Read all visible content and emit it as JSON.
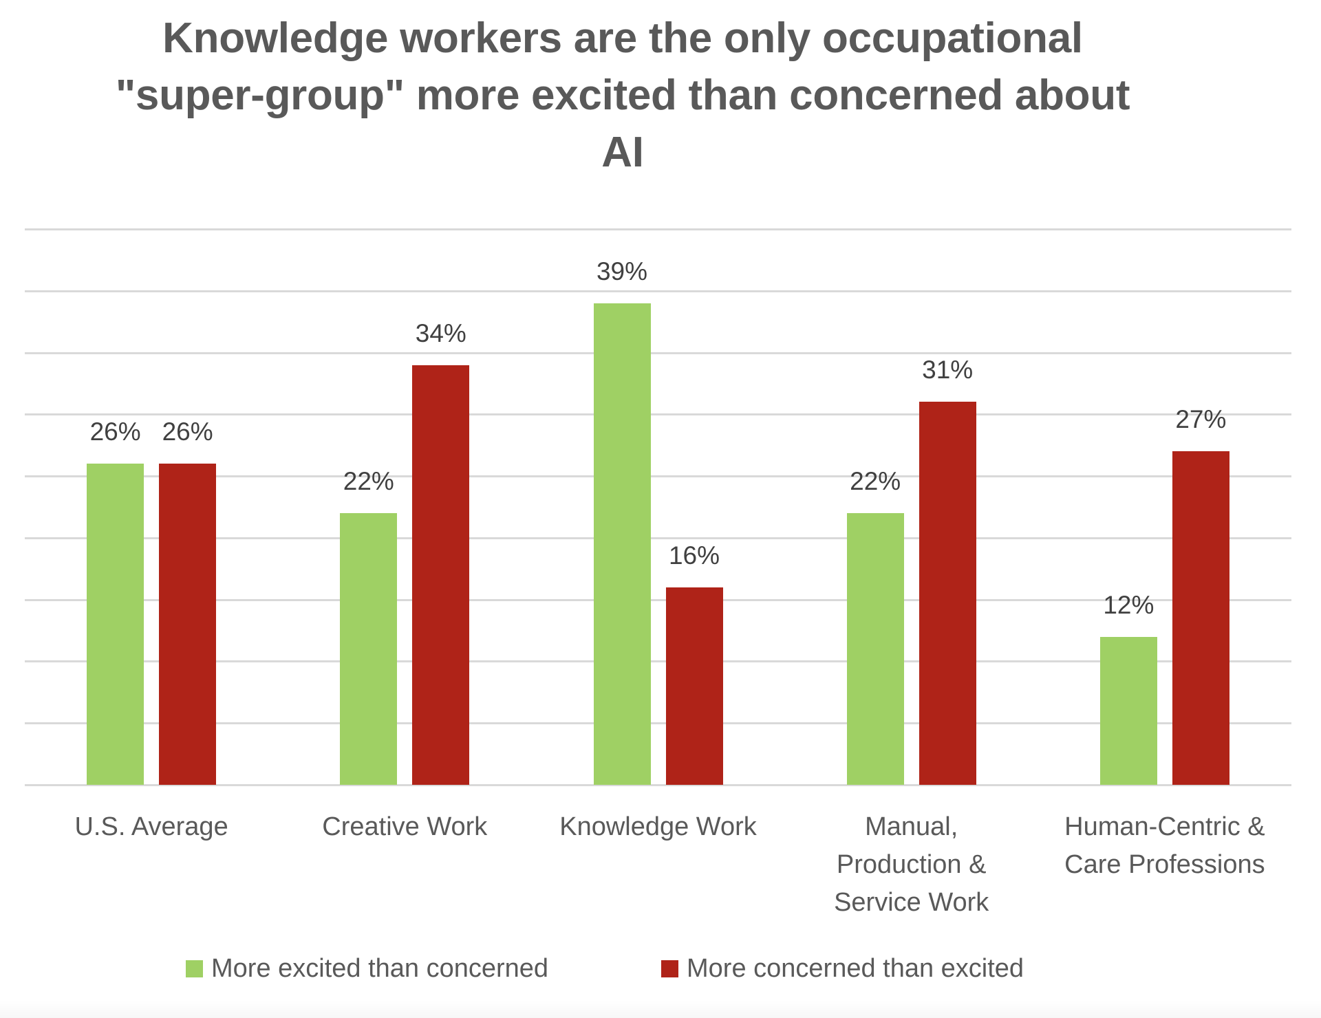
{
  "chart_data": {
    "type": "bar",
    "title": "Knowledge workers are the only occupational \"super-group\" more excited than concerned about AI",
    "title_lines": [
      "Knowledge workers are the only occupational",
      "\"super-group\" more excited than concerned about",
      "AI"
    ],
    "xlabel": "",
    "ylabel": "",
    "ylim": [
      0,
      45
    ],
    "y_gridline_step": 5,
    "grid": true,
    "y_axis_labels_visible": false,
    "legend_position": "bottom",
    "categories": [
      "U.S. Average",
      "Creative Work",
      "Knowledge Work",
      "Manual, Production & Service Work",
      "Human-Centric & Care Professions"
    ],
    "category_label_lines": [
      [
        "U.S. Average"
      ],
      [
        "Creative Work"
      ],
      [
        "Knowledge Work"
      ],
      [
        "Manual,",
        "Production &",
        "Service Work"
      ],
      [
        "Human-Centric &",
        "Care Professions"
      ]
    ],
    "series": [
      {
        "name": "More excited than concerned",
        "color": "#9fd064",
        "values": [
          26,
          22,
          39,
          22,
          12
        ],
        "data_labels": [
          "26%",
          "22%",
          "39%",
          "22%",
          "12%"
        ]
      },
      {
        "name": "More concerned than excited",
        "color": "#af2318",
        "values": [
          26,
          34,
          16,
          31,
          27
        ],
        "data_labels": [
          "26%",
          "34%",
          "16%",
          "31%",
          "27%"
        ]
      }
    ]
  },
  "colors": {
    "title": "#595959",
    "data_label": "#404040",
    "axis_label": "#595959",
    "gridline": "#d9d9d9",
    "background": "#ffffff"
  }
}
